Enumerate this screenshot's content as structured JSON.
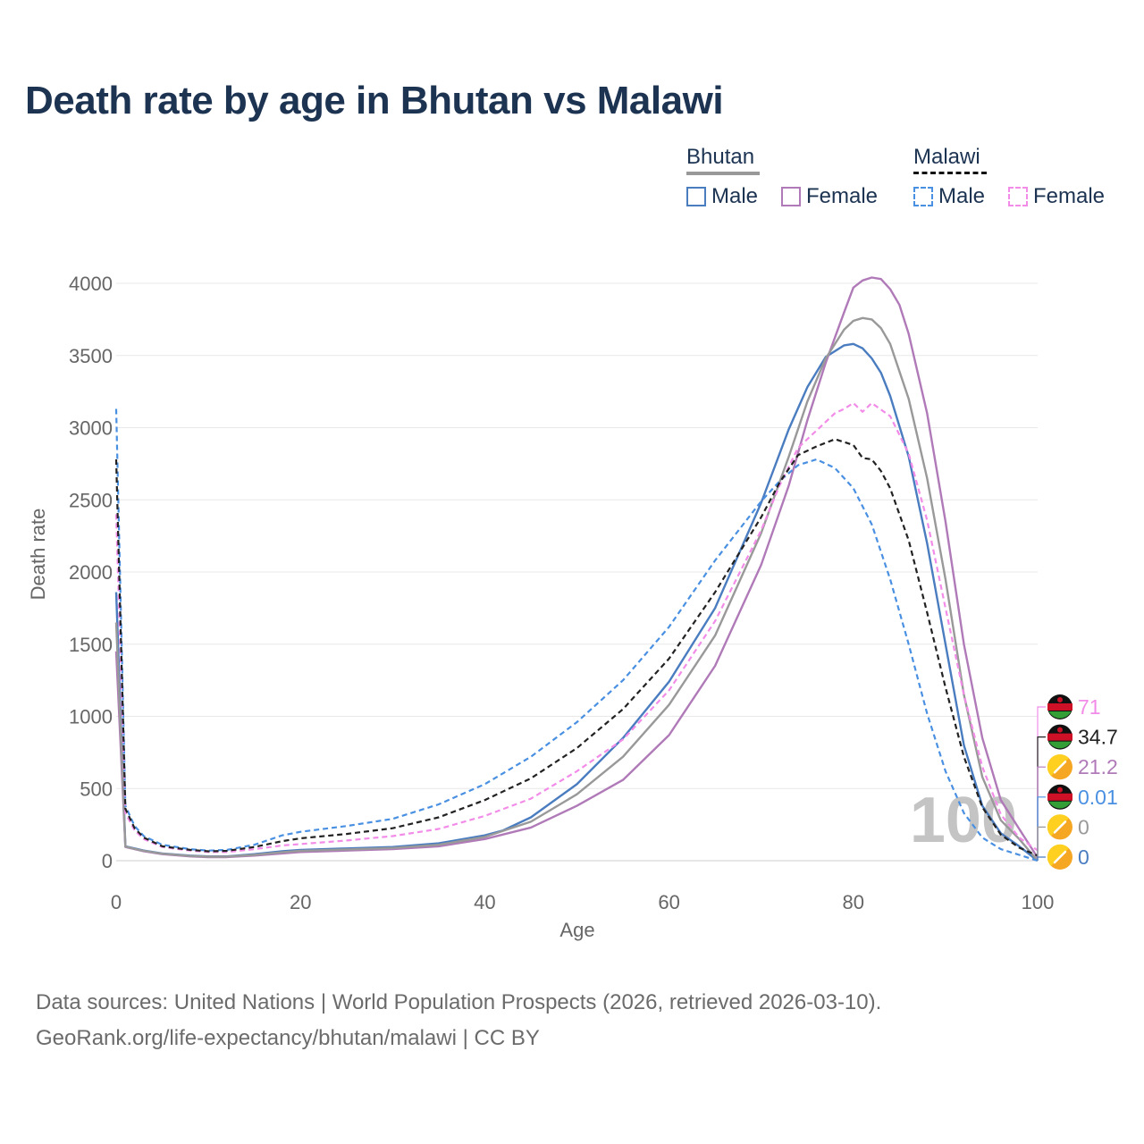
{
  "title": "Death rate by age in Bhutan vs Malawi",
  "legend": {
    "groups": [
      {
        "label": "Bhutan",
        "line_color": "#999999",
        "dash": false
      },
      {
        "label": "Malawi",
        "line_color": "#111111",
        "dash": true
      }
    ],
    "items": [
      {
        "label": "Male",
        "color": "#4a7cc0",
        "dash": false
      },
      {
        "label": "Female",
        "color": "#b07ab8",
        "dash": false
      },
      {
        "label": "Male",
        "color": "#4a90e2",
        "dash": true
      },
      {
        "label": "Female",
        "color": "#f28ce8",
        "dash": true
      }
    ]
  },
  "watermark": "100",
  "end_labels": [
    {
      "text": "71",
      "color": "#f28ce8",
      "flag": "malawi"
    },
    {
      "text": "34.7",
      "color": "#222222",
      "flag": "malawi"
    },
    {
      "text": "21.2",
      "color": "#b07ab8",
      "flag": "bhutan"
    },
    {
      "text": "0.01",
      "color": "#4a90e2",
      "flag": "malawi"
    },
    {
      "text": "0",
      "color": "#999999",
      "flag": "bhutan"
    },
    {
      "text": "0",
      "color": "#4a7cc0",
      "flag": "bhutan"
    }
  ],
  "footer": {
    "line1": "Data sources: United Nations | World Population Prospects (2026, retrieved 2026-03-10).",
    "line2": "GeoRank.org/life-expectancy/bhutan/malawi | CC BY"
  },
  "chart_data": {
    "type": "line",
    "title": "Death rate by age in Bhutan vs Malawi",
    "xlabel": "Age",
    "ylabel": "Death rate",
    "xlim": [
      0,
      100
    ],
    "ylim": [
      0,
      4000
    ],
    "xticks": [
      "0",
      "20",
      "40",
      "60",
      "80",
      "100"
    ],
    "yticks": [
      "0",
      "500",
      "1000",
      "1500",
      "2000",
      "2500",
      "3000",
      "3500",
      "4000"
    ],
    "series": [
      {
        "name": "Bhutan Male",
        "color": "#4a7cc0",
        "dash": false,
        "x": [
          0,
          1,
          2,
          3,
          5,
          8,
          10,
          12,
          15,
          18,
          20,
          25,
          30,
          35,
          40,
          42,
          45,
          50,
          55,
          60,
          65,
          70,
          73,
          75,
          77,
          79,
          80,
          81,
          82,
          83,
          84,
          86,
          88,
          90,
          92,
          94,
          96,
          98,
          100
        ],
        "y": [
          1860,
          100,
          85,
          70,
          50,
          35,
          30,
          30,
          45,
          65,
          75,
          85,
          95,
          120,
          175,
          210,
          300,
          530,
          850,
          1240,
          1750,
          2480,
          2990,
          3280,
          3490,
          3570,
          3580,
          3550,
          3480,
          3380,
          3220,
          2800,
          2200,
          1500,
          800,
          380,
          190,
          100,
          0
        ]
      },
      {
        "name": "Bhutan Female",
        "color": "#b07ab8",
        "dash": false,
        "x": [
          0,
          1,
          2,
          3,
          5,
          8,
          10,
          12,
          15,
          18,
          20,
          25,
          30,
          35,
          40,
          45,
          50,
          55,
          60,
          65,
          70,
          73,
          75,
          77,
          79,
          80,
          81,
          82,
          83,
          84,
          85,
          86,
          88,
          90,
          92,
          94,
          96,
          98,
          100
        ],
        "y": [
          1450,
          95,
          80,
          65,
          45,
          30,
          25,
          25,
          35,
          50,
          60,
          70,
          80,
          100,
          150,
          230,
          380,
          560,
          870,
          1350,
          2050,
          2600,
          3050,
          3450,
          3800,
          3970,
          4020,
          4040,
          4030,
          3960,
          3850,
          3650,
          3100,
          2350,
          1500,
          850,
          420,
          220,
          21.2
        ]
      },
      {
        "name": "Bhutan Both",
        "color": "#999999",
        "dash": false,
        "x": [
          0,
          1,
          2,
          3,
          5,
          8,
          10,
          12,
          15,
          18,
          20,
          25,
          30,
          35,
          40,
          45,
          50,
          55,
          60,
          65,
          70,
          73,
          75,
          77,
          79,
          80,
          81,
          82,
          83,
          84,
          86,
          88,
          90,
          92,
          94,
          96,
          98,
          100
        ],
        "y": [
          1650,
          98,
          82,
          68,
          48,
          33,
          28,
          28,
          40,
          58,
          68,
          78,
          88,
          110,
          165,
          270,
          460,
          720,
          1080,
          1560,
          2270,
          2800,
          3180,
          3480,
          3680,
          3740,
          3760,
          3750,
          3690,
          3580,
          3200,
          2650,
          1950,
          1150,
          580,
          280,
          150,
          0
        ]
      },
      {
        "name": "Malawi Male",
        "color": "#4a90e2",
        "dash": true,
        "x": [
          0,
          1,
          2,
          3,
          5,
          8,
          10,
          12,
          15,
          18,
          20,
          25,
          30,
          35,
          40,
          45,
          50,
          55,
          60,
          65,
          70,
          72,
          74,
          76,
          78,
          80,
          82,
          84,
          86,
          88,
          90,
          92,
          94,
          96,
          98,
          100
        ],
        "y": [
          3130,
          380,
          240,
          170,
          110,
          80,
          70,
          75,
          110,
          175,
          200,
          240,
          290,
          390,
          530,
          720,
          960,
          1250,
          1620,
          2080,
          2490,
          2630,
          2740,
          2780,
          2720,
          2580,
          2330,
          1950,
          1500,
          1020,
          620,
          330,
          160,
          80,
          40,
          0.01
        ]
      },
      {
        "name": "Malawi Female",
        "color": "#f28ce8",
        "dash": true,
        "x": [
          0,
          1,
          2,
          3,
          5,
          8,
          10,
          12,
          15,
          18,
          20,
          25,
          30,
          35,
          40,
          45,
          50,
          55,
          60,
          65,
          70,
          72,
          74,
          76,
          78,
          79,
          80,
          81,
          82,
          84,
          86,
          88,
          90,
          92,
          94,
          96,
          98,
          100
        ],
        "y": [
          2400,
          330,
          210,
          150,
          95,
          70,
          60,
          60,
          80,
          105,
          115,
          140,
          170,
          220,
          310,
          430,
          620,
          840,
          1180,
          1660,
          2290,
          2600,
          2860,
          2980,
          3100,
          3130,
          3170,
          3110,
          3170,
          3080,
          2820,
          2360,
          1750,
          1150,
          650,
          320,
          160,
          71
        ]
      },
      {
        "name": "Malawi Both",
        "color": "#222222",
        "dash": true,
        "x": [
          0,
          1,
          2,
          3,
          5,
          8,
          10,
          12,
          15,
          18,
          20,
          25,
          30,
          35,
          40,
          45,
          50,
          55,
          60,
          65,
          70,
          72,
          74,
          76,
          78,
          80,
          81,
          82,
          83,
          84,
          86,
          88,
          90,
          92,
          94,
          96,
          98,
          100
        ],
        "y": [
          2780,
          360,
          225,
          160,
          100,
          75,
          65,
          68,
          95,
          135,
          155,
          185,
          225,
          300,
          420,
          570,
          780,
          1050,
          1400,
          1860,
          2380,
          2620,
          2810,
          2870,
          2920,
          2880,
          2790,
          2780,
          2700,
          2580,
          2220,
          1720,
          1200,
          720,
          370,
          180,
          90,
          34.7
        ]
      }
    ]
  }
}
